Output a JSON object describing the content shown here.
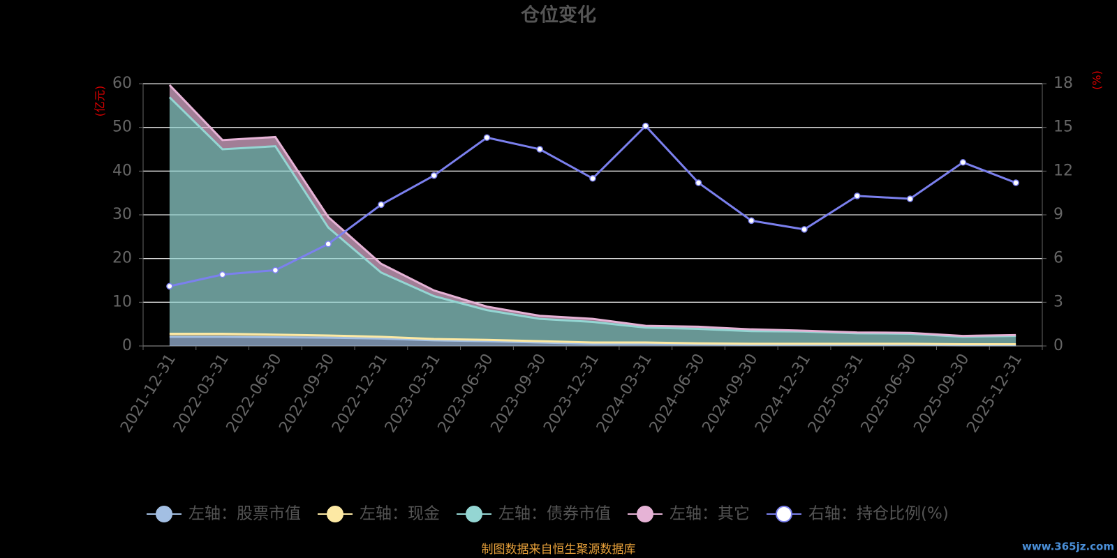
{
  "chart_data": {
    "type": "area",
    "stacked": true,
    "title": "仓位变化",
    "y_label": "(亿元)",
    "y2_label": "(%)",
    "categories": [
      "2021-12-31",
      "2022-03-31",
      "2022-06-30",
      "2022-09-30",
      "2022-12-31",
      "2023-03-31",
      "2023-06-30",
      "2023-09-30",
      "2023-12-31",
      "2024-03-31",
      "2024-06-30",
      "2024-09-30",
      "2024-12-31",
      "2025-03-31",
      "2025-06-30",
      "2025-09-30",
      "2025-12-31"
    ],
    "series": [
      {
        "name": "左轴：股票市值",
        "type": "area",
        "color": "#a3bfe3",
        "values": [
          2.1,
          2.1,
          2.0,
          1.9,
          1.7,
          1.3,
          1.1,
          0.8,
          0.5,
          0.5,
          0.4,
          0.3,
          0.3,
          0.3,
          0.3,
          0.2,
          0.2
        ]
      },
      {
        "name": "左轴：现金",
        "type": "area",
        "color": "#fde9a4",
        "values": [
          0.7,
          0.7,
          0.6,
          0.5,
          0.4,
          0.3,
          0.3,
          0.3,
          0.3,
          0.3,
          0.2,
          0.2,
          0.2,
          0.2,
          0.2,
          0.2,
          0.2
        ]
      },
      {
        "name": "左轴：债券市值",
        "type": "area",
        "color": "#94d6d3",
        "values": [
          54.1,
          42.2,
          43.1,
          24.7,
          14.7,
          9.8,
          6.8,
          5.1,
          4.7,
          3.4,
          3.3,
          2.9,
          2.8,
          2.4,
          2.3,
          1.7,
          1.9
        ]
      },
      {
        "name": "左轴：其它",
        "type": "area",
        "color": "#e6b3d6",
        "values": [
          2.8,
          2.1,
          2.1,
          2.4,
          2.0,
          1.3,
          0.8,
          0.7,
          0.7,
          0.4,
          0.5,
          0.4,
          0.2,
          0.2,
          0.2,
          0.2,
          0.2
        ]
      },
      {
        "name": "右轴：持仓比例(%)",
        "type": "line",
        "axis": "y2",
        "color": "#7b80ee",
        "values": [
          4.1,
          4.9,
          5.2,
          7.0,
          9.7,
          11.7,
          14.3,
          13.5,
          11.5,
          15.1,
          11.2,
          8.6,
          8.0,
          10.3,
          10.1,
          12.6,
          11.2
        ]
      }
    ],
    "ylim": [
      0,
      60
    ],
    "yticks": [
      0,
      10,
      20,
      30,
      40,
      50,
      60
    ],
    "y2lim": [
      0,
      18
    ],
    "y2ticks": [
      0,
      3,
      6,
      9,
      12,
      15,
      18
    ],
    "grid": true,
    "legend": "bottom",
    "source": "制图数据来自恒生聚源数据库",
    "watermark": "www.365jz.com"
  }
}
